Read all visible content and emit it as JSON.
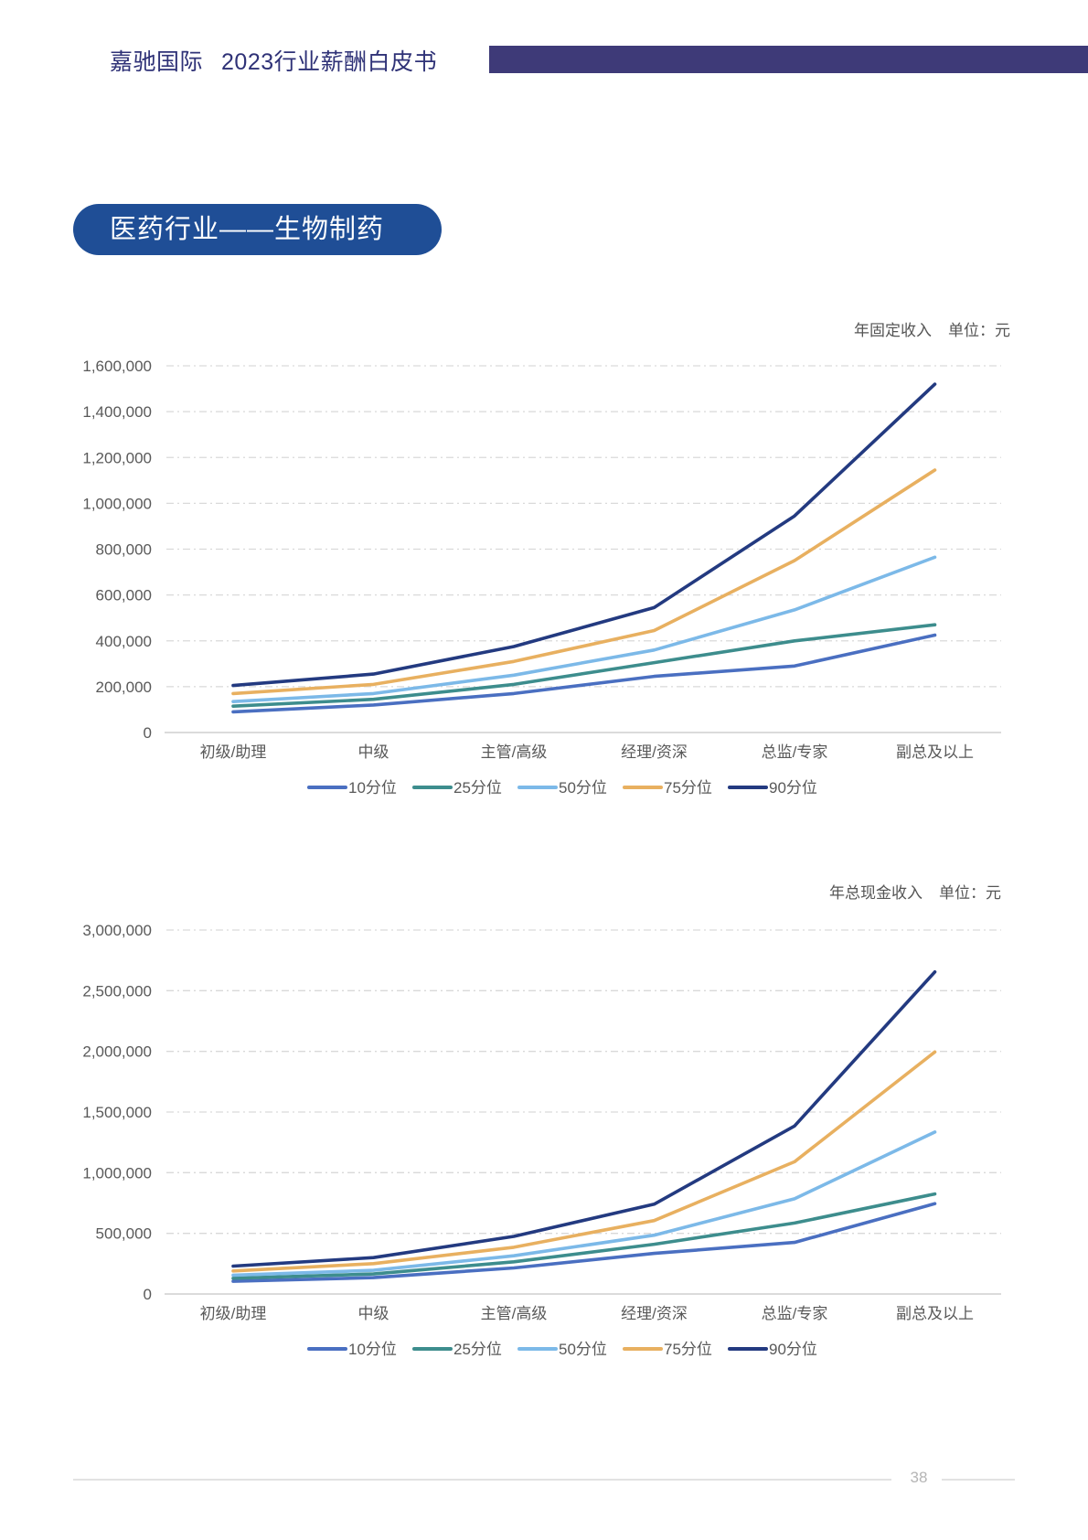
{
  "header": {
    "company": "嘉驰国际",
    "report": "2023行业薪酬白皮书"
  },
  "section": {
    "title": "医药行业——生物制药"
  },
  "colors": {
    "p10": "#4a6fc1",
    "p25": "#3d8d8d",
    "p50": "#7cb9e8",
    "p75": "#e8b060",
    "p90": "#233a80",
    "grid": "#d9d9d9",
    "axis": "#cfcfcf",
    "tick_text": "#595959"
  },
  "chart_data": [
    {
      "type": "line",
      "title": "年固定收入",
      "unit_label": "单位：元",
      "categories": [
        "初级/助理",
        "中级",
        "主管/高级",
        "经理/资深",
        "总监/专家",
        "副总及以上"
      ],
      "ylim": [
        0,
        1600000
      ],
      "yticks": [
        0,
        200000,
        400000,
        600000,
        800000,
        1000000,
        1200000,
        1400000,
        1600000
      ],
      "ytick_labels": [
        "0",
        "200,000",
        "400,000",
        "600,000",
        "800,000",
        "1,000,000",
        "1,200,000",
        "1,400,000",
        "1,600,000"
      ],
      "grid": true,
      "legend_position": "bottom",
      "series": [
        {
          "name": "10分位",
          "key": "p10",
          "values": [
            90000,
            120000,
            170000,
            245000,
            290000,
            425000
          ]
        },
        {
          "name": "25分位",
          "key": "p25",
          "values": [
            115000,
            145000,
            210000,
            305000,
            400000,
            470000
          ]
        },
        {
          "name": "50分位",
          "key": "p50",
          "values": [
            135000,
            170000,
            250000,
            360000,
            535000,
            765000
          ]
        },
        {
          "name": "75分位",
          "key": "p75",
          "values": [
            170000,
            210000,
            310000,
            445000,
            750000,
            1145000
          ]
        },
        {
          "name": "90分位",
          "key": "p90",
          "values": [
            205000,
            255000,
            375000,
            545000,
            945000,
            1520000
          ]
        }
      ]
    },
    {
      "type": "line",
      "title": "年总现金收入",
      "unit_label": "单位：元",
      "categories": [
        "初级/助理",
        "中级",
        "主管/高级",
        "经理/资深",
        "总监/专家",
        "副总及以上"
      ],
      "ylim": [
        0,
        3000000
      ],
      "yticks": [
        0,
        500000,
        1000000,
        1500000,
        2000000,
        2500000,
        3000000
      ],
      "ytick_labels": [
        "0",
        "500,000",
        "1,000,000",
        "1,500,000",
        "2,000,000",
        "2,500,000",
        "3,000,000"
      ],
      "grid": true,
      "legend_position": "bottom",
      "series": [
        {
          "name": "10分位",
          "key": "p10",
          "values": [
            105000,
            135000,
            215000,
            335000,
            425000,
            745000
          ]
        },
        {
          "name": "25分位",
          "key": "p25",
          "values": [
            130000,
            165000,
            265000,
            410000,
            585000,
            825000
          ]
        },
        {
          "name": "50分位",
          "key": "p50",
          "values": [
            155000,
            195000,
            315000,
            485000,
            785000,
            1335000
          ]
        },
        {
          "name": "75分位",
          "key": "p75",
          "values": [
            190000,
            250000,
            385000,
            605000,
            1090000,
            1995000
          ]
        },
        {
          "name": "90分位",
          "key": "p90",
          "values": [
            230000,
            300000,
            475000,
            740000,
            1385000,
            2655000
          ]
        }
      ]
    }
  ],
  "footer": {
    "page_number": "38"
  }
}
